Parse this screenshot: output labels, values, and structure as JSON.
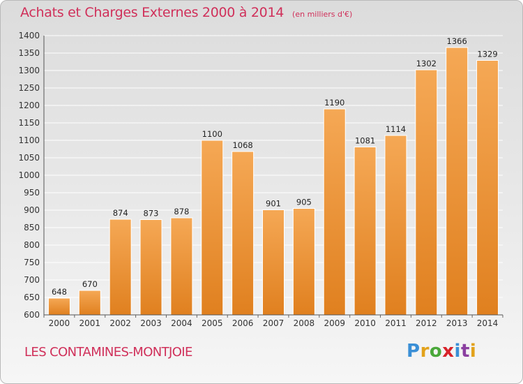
{
  "chart_data": {
    "type": "bar",
    "title": "Achats et Charges Externes 2000 à 2014",
    "subtitle": "(en milliers d'€)",
    "categories": [
      "2000",
      "2001",
      "2002",
      "2003",
      "2004",
      "2005",
      "2006",
      "2007",
      "2008",
      "2009",
      "2010",
      "2011",
      "2012",
      "2013",
      "2014"
    ],
    "values": [
      648,
      670,
      874,
      873,
      878,
      1100,
      1068,
      901,
      905,
      1190,
      1081,
      1114,
      1302,
      1366,
      1329
    ],
    "ylim": [
      600,
      1400
    ],
    "yticks": [
      600,
      650,
      700,
      750,
      800,
      850,
      900,
      950,
      1000,
      1050,
      1100,
      1150,
      1200,
      1250,
      1300,
      1350,
      1400
    ],
    "grid": true,
    "xlabel": "",
    "ylabel": ""
  },
  "commune": "LES CONTAMINES-MONTJOIE",
  "logo": {
    "letters": [
      "P",
      "r",
      "o",
      "x",
      "i",
      "t",
      "i"
    ],
    "colors": [
      "#3a8fd6",
      "#e2a21b",
      "#4aa83a",
      "#d8232a",
      "#3a8fd6",
      "#8b3fa0",
      "#e2a21b"
    ]
  },
  "colors": {
    "title": "#d0305a",
    "bar_light": "#f5a855",
    "bar_dark": "#e0801f",
    "grid": "#ffffff"
  }
}
